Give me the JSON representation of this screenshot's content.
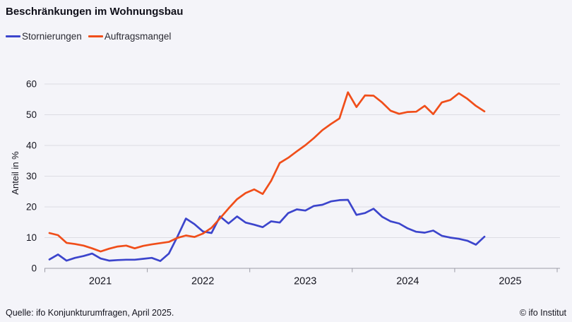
{
  "title": "Beschränkungen im Wohnungsbau",
  "legend": {
    "items": [
      {
        "label": "Stornierungen",
        "color": "#3c45cc"
      },
      {
        "label": "Auftragsmangel",
        "color": "#f04e1a"
      }
    ]
  },
  "footer": {
    "source": "Quelle: ifo Konjunkturumfragen, April 2025.",
    "copyright": "© ifo Institut"
  },
  "chart_data": {
    "type": "line",
    "title": "Beschränkungen im Wohnungsbau",
    "ylabel": "Anteil in %",
    "ylim": [
      0,
      65
    ],
    "yticks": [
      0,
      10,
      20,
      30,
      40,
      50,
      60
    ],
    "xticklabels": [
      "2021",
      "2022",
      "2023",
      "2024",
      "2025"
    ],
    "grid": "horizontal",
    "legend_position": "top-left",
    "x_months": [
      "2021-01",
      "2021-02",
      "2021-03",
      "2021-04",
      "2021-05",
      "2021-06",
      "2021-07",
      "2021-08",
      "2021-09",
      "2021-10",
      "2021-11",
      "2021-12",
      "2022-01",
      "2022-02",
      "2022-03",
      "2022-04",
      "2022-05",
      "2022-06",
      "2022-07",
      "2022-08",
      "2022-09",
      "2022-10",
      "2022-11",
      "2022-12",
      "2023-01",
      "2023-02",
      "2023-03",
      "2023-04",
      "2023-05",
      "2023-06",
      "2023-07",
      "2023-08",
      "2023-09",
      "2023-10",
      "2023-11",
      "2023-12",
      "2024-01",
      "2024-02",
      "2024-03",
      "2024-04",
      "2024-05",
      "2024-06",
      "2024-07",
      "2024-08",
      "2024-09",
      "2024-10",
      "2024-11",
      "2024-12",
      "2025-01",
      "2025-02",
      "2025-03",
      "2025-04"
    ],
    "series": [
      {
        "name": "Stornierungen",
        "color": "#3c45cc",
        "values": [
          2.9,
          4.5,
          2.5,
          3.4,
          4.0,
          4.8,
          3.2,
          2.5,
          2.7,
          2.8,
          2.8,
          3.1,
          3.4,
          2.4,
          4.8,
          10.3,
          16.2,
          14.4,
          12.0,
          11.5,
          16.9,
          14.6,
          16.9,
          14.9,
          14.2,
          13.4,
          15.3,
          14.9,
          18.0,
          19.2,
          18.8,
          20.3,
          20.7,
          21.8,
          22.2,
          22.3,
          17.4,
          18.0,
          19.4,
          16.8,
          15.3,
          14.6,
          13.0,
          11.9,
          11.6,
          12.3,
          10.6,
          10.0,
          9.6,
          9.0,
          7.7,
          10.3
        ]
      },
      {
        "name": "Auftragsmangel",
        "color": "#f04e1a",
        "values": [
          11.5,
          10.8,
          8.3,
          7.9,
          7.4,
          6.5,
          5.5,
          6.4,
          7.1,
          7.4,
          6.5,
          7.3,
          7.8,
          8.2,
          8.6,
          9.9,
          10.7,
          10.2,
          11.3,
          13.2,
          16.3,
          19.5,
          22.5,
          24.5,
          25.7,
          24.2,
          28.5,
          34.3,
          36.0,
          38.1,
          40.1,
          42.4,
          45.0,
          47.0,
          48.8,
          57.3,
          52.5,
          56.3,
          56.2,
          54.0,
          51.3,
          50.3,
          50.9,
          51.0,
          52.9,
          50.2,
          54.0,
          54.8,
          57.0,
          55.2,
          52.9,
          51.1
        ]
      }
    ],
    "style": {
      "background": "#f4f4f9",
      "gridline_color": "#dcdce3",
      "axis_color": "#9b9ba6",
      "text_color": "#15151f"
    }
  }
}
